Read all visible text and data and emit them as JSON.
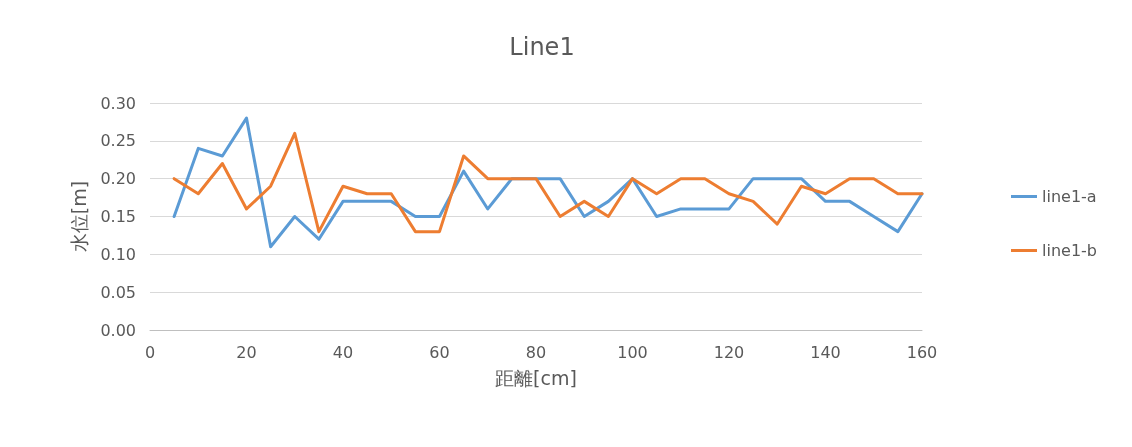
{
  "chart_data": {
    "type": "line",
    "title": "Line1",
    "xlabel": "距離[cm]",
    "ylabel": "水位[m]",
    "x": [
      5,
      10,
      15,
      20,
      25,
      30,
      35,
      40,
      45,
      50,
      55,
      60,
      65,
      70,
      75,
      80,
      85,
      90,
      95,
      100,
      105,
      110,
      115,
      120,
      125,
      130,
      135,
      140,
      145,
      150,
      155,
      160
    ],
    "series": [
      {
        "name": "line1-a",
        "color": "#5b9bd5",
        "values": [
          0.15,
          0.24,
          0.23,
          0.28,
          0.11,
          0.15,
          0.12,
          0.17,
          0.17,
          0.17,
          0.15,
          0.15,
          0.21,
          0.16,
          0.2,
          0.2,
          0.2,
          0.15,
          0.17,
          0.2,
          0.15,
          0.16,
          0.16,
          0.16,
          0.2,
          0.2,
          0.2,
          0.17,
          0.17,
          0.15,
          0.13,
          0.18
        ]
      },
      {
        "name": "line1-b",
        "color": "#ed7d31",
        "values": [
          0.2,
          0.18,
          0.22,
          0.16,
          0.19,
          0.26,
          0.13,
          0.19,
          0.18,
          0.18,
          0.13,
          0.13,
          0.23,
          0.2,
          0.2,
          0.2,
          0.15,
          0.17,
          0.15,
          0.2,
          0.18,
          0.2,
          0.2,
          0.18,
          0.17,
          0.14,
          0.19,
          0.18,
          0.2,
          0.2,
          0.18,
          0.18
        ]
      }
    ],
    "xlim": [
      0,
      160
    ],
    "xticks": [
      0,
      20,
      40,
      60,
      80,
      100,
      120,
      140,
      160
    ],
    "ylim": [
      0,
      0.3
    ],
    "yticks": [
      {
        "value": 0,
        "label": "0.00"
      },
      {
        "value": 0.05,
        "label": "0.05"
      },
      {
        "value": 0.1,
        "label": "0.10"
      },
      {
        "value": 0.15,
        "label": "0.15"
      },
      {
        "value": 0.2,
        "label": "0.20"
      },
      {
        "value": 0.25,
        "label": "0.25"
      },
      {
        "value": 0.3,
        "label": "0.30"
      }
    ],
    "grid": "y",
    "legend": "right",
    "marker": "none",
    "line_style": "solid"
  }
}
